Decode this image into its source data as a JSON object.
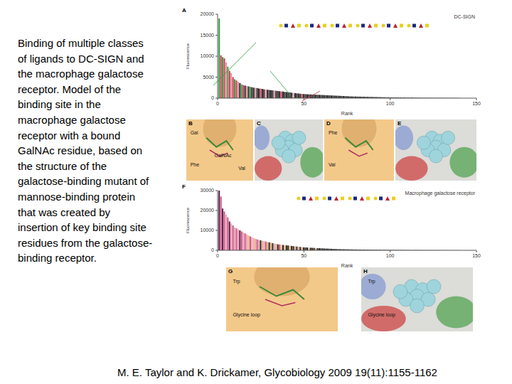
{
  "caption": [
    "Binding of multiple classes",
    "of ligands to DC-SIGN and",
    "the macrophage galactose",
    "receptor. Model of the",
    "binding site in the",
    "macrophage galactose",
    "receptor with a bound",
    "GalNAc residue, based on",
    "the structure of the",
    "galactose-binding mutant of",
    "mannose-binding protein",
    "that was created by",
    "insertion of key binding site",
    "residues from the galactose-",
    "binding receptor."
  ],
  "citation": "M. E. Taylor and K. Drickamer, Glycobiology 2009 19(11):1155-1162",
  "panels": [
    {
      "letter": "B",
      "labels": [
        "Gal",
        "Phe",
        "GalNAc",
        "Val"
      ]
    },
    {
      "letter": "C",
      "labels": []
    },
    {
      "letter": "D",
      "labels": [
        "Phe",
        "Val"
      ]
    },
    {
      "letter": "E",
      "labels": []
    },
    {
      "letter": "G",
      "labels": [
        "Trp",
        "Glycine loop"
      ]
    },
    {
      "letter": "H",
      "labels": [
        "Trp",
        "Glycine loop"
      ]
    }
  ],
  "chart_data": [
    {
      "panel": "A",
      "type": "bar",
      "title": "DC-SIGN",
      "x_label": "Rank",
      "y_label": "Fluorescence",
      "x": [
        1,
        2,
        3,
        4,
        5,
        6,
        7,
        8,
        9,
        10,
        11,
        12,
        13,
        14,
        15,
        16,
        17,
        18,
        19,
        20,
        21,
        22,
        23,
        24,
        25,
        26,
        27,
        28,
        29,
        30,
        31,
        32,
        33,
        34,
        35,
        36,
        37,
        38,
        39,
        40,
        41,
        42,
        43,
        44,
        45,
        46,
        47,
        48,
        49,
        50,
        51,
        52,
        53,
        54,
        55,
        56,
        57,
        58,
        59,
        60,
        61,
        62,
        63,
        64,
        65,
        66,
        67,
        68,
        69,
        70,
        71,
        72,
        73,
        74,
        75,
        76,
        77,
        78,
        79,
        80,
        81,
        82,
        83,
        84,
        85,
        86,
        87,
        88,
        89,
        90,
        91,
        92,
        93,
        94,
        95,
        96,
        97,
        98,
        99,
        100,
        101,
        102,
        103,
        104,
        105,
        106,
        107,
        108,
        109,
        110,
        111,
        112,
        113,
        114,
        115,
        116,
        117,
        118,
        119,
        120,
        121,
        122,
        123,
        124,
        125,
        126,
        127,
        128,
        129,
        130,
        131,
        132,
        133,
        134,
        135,
        136,
        137,
        138,
        139,
        140
      ],
      "values": [
        19000,
        10200,
        9800,
        9500,
        8500,
        7500,
        6500,
        6000,
        5000,
        4500,
        4200,
        3900,
        3600,
        3300,
        3100,
        3000,
        2900,
        2800,
        2700,
        2600,
        2500,
        2450,
        2400,
        2300,
        2250,
        2200,
        2100,
        2050,
        2000,
        1950,
        1900,
        1850,
        1800,
        1750,
        1700,
        1650,
        1600,
        1550,
        1500,
        1450,
        1400,
        1350,
        1300,
        1250,
        1200,
        1150,
        1100,
        1050,
        1000,
        980,
        950,
        920,
        900,
        880,
        860,
        840,
        820,
        800,
        780,
        760,
        740,
        720,
        700,
        680,
        660,
        640,
        620,
        600,
        580,
        560,
        540,
        520,
        500,
        480,
        460,
        440,
        420,
        400,
        390,
        380,
        370,
        360,
        350,
        340,
        330,
        320,
        310,
        300,
        290,
        280,
        270,
        260,
        250,
        240,
        230,
        220,
        210,
        200,
        190,
        180,
        175,
        170,
        165,
        160,
        155,
        150,
        145,
        140,
        135,
        130,
        125,
        120,
        115,
        110,
        105,
        100,
        95,
        90,
        85,
        80,
        78,
        76,
        74,
        72,
        70,
        68,
        66,
        64,
        62,
        60,
        58,
        56,
        54,
        52,
        50,
        48,
        46,
        44,
        42,
        40
      ],
      "colors": [
        "#2e9e3e",
        "#d0304a",
        "#2e9e3e",
        "#d0304a",
        "#e88aa0",
        "#2e9e3e",
        "#d0304a",
        "#e88aa0",
        "#d0304a",
        "#2e9e3e",
        "#d0304a",
        "#e88aa0",
        "#222222",
        "#2e9e3e",
        "#d0304a",
        "#222222",
        "#e88aa0",
        "#222222",
        "#2e9e3e",
        "#222222",
        "#222222",
        "#e88aa0",
        "#222222",
        "#222222",
        "#d0304a",
        "#222222",
        "#222222",
        "#e88aa0",
        "#222222",
        "#222222",
        "#222222",
        "#222222",
        "#e88aa0",
        "#222222",
        "#222222",
        "#222222",
        "#d0304a",
        "#222222",
        "#222222",
        "#222222",
        "#222222",
        "#222222",
        "#222222",
        "#e88aa0",
        "#222222",
        "#222222",
        "#222222",
        "#222222",
        "#d0304a",
        "#222222",
        "#222222",
        "#222222",
        "#222222",
        "#222222",
        "#222222",
        "#222222",
        "#222222",
        "#222222",
        "#222222",
        "#222222",
        "#222222",
        "#222222",
        "#222222",
        "#222222",
        "#222222",
        "#222222",
        "#222222",
        "#222222",
        "#222222",
        "#222222",
        "#222222",
        "#222222",
        "#222222",
        "#222222",
        "#222222",
        "#222222",
        "#222222",
        "#222222",
        "#222222",
        "#222222",
        "#222222",
        "#222222",
        "#222222",
        "#222222",
        "#222222",
        "#222222",
        "#222222",
        "#222222",
        "#222222",
        "#222222",
        "#222222",
        "#222222",
        "#222222",
        "#222222",
        "#222222",
        "#222222",
        "#222222",
        "#222222",
        "#222222",
        "#222222",
        "#222222",
        "#222222",
        "#222222",
        "#222222",
        "#222222",
        "#222222",
        "#222222",
        "#222222",
        "#222222",
        "#222222",
        "#222222",
        "#222222",
        "#222222",
        "#222222",
        "#222222",
        "#222222",
        "#222222",
        "#222222",
        "#222222",
        "#222222",
        "#222222",
        "#222222",
        "#222222",
        "#222222",
        "#222222",
        "#222222",
        "#222222",
        "#222222",
        "#222222",
        "#222222",
        "#222222",
        "#222222",
        "#222222",
        "#222222",
        "#222222",
        "#222222",
        "#222222",
        "#222222",
        "#222222",
        "#222222"
      ],
      "xlim": [
        0,
        150
      ],
      "xticks": [
        0,
        50,
        100,
        150
      ],
      "ylim": [
        0,
        20000
      ],
      "yticks": [
        0,
        5000,
        10000,
        15000,
        20000
      ]
    },
    {
      "panel": "F",
      "type": "bar",
      "title": "Macrophage galactose receptor",
      "x_label": "Rank",
      "y_label": "Fluorescence",
      "x": [
        1,
        2,
        3,
        4,
        5,
        6,
        7,
        8,
        9,
        10,
        11,
        12,
        13,
        14,
        15,
        16,
        17,
        18,
        19,
        20,
        21,
        22,
        23,
        24,
        25,
        26,
        27,
        28,
        29,
        30,
        31,
        32,
        33,
        34,
        35,
        36,
        37,
        38,
        39,
        40,
        41,
        42,
        43,
        44,
        45,
        46,
        47,
        48,
        49,
        50,
        51,
        52,
        53,
        54,
        55,
        56,
        57,
        58,
        59,
        60,
        61,
        62,
        63,
        64,
        65,
        66,
        67,
        68,
        69,
        70,
        71,
        72,
        73,
        74,
        75,
        76,
        77,
        78,
        79,
        80,
        81,
        82,
        83,
        84,
        85,
        86,
        87,
        88,
        89,
        90,
        91,
        92,
        93,
        94,
        95,
        96,
        97,
        98,
        99,
        100,
        101,
        102,
        103,
        104,
        105,
        106,
        107,
        108,
        109,
        110,
        111,
        112,
        113,
        114,
        115,
        116,
        117,
        118,
        119,
        120,
        121,
        122,
        123,
        124,
        125,
        126,
        127,
        128,
        129,
        130,
        131,
        132,
        133,
        134,
        135,
        136,
        137,
        138,
        139,
        140
      ],
      "values": [
        30000,
        27000,
        21000,
        19500,
        18000,
        16500,
        14500,
        13500,
        12500,
        11500,
        11000,
        10500,
        10000,
        9500,
        9000,
        8500,
        8000,
        7500,
        7000,
        6600,
        6200,
        5800,
        5500,
        5200,
        5000,
        4800,
        4600,
        4400,
        4200,
        4000,
        3800,
        3600,
        3400,
        3200,
        3000,
        2900,
        2800,
        2700,
        2600,
        2500,
        2400,
        2300,
        2200,
        2100,
        2000,
        1900,
        1800,
        1700,
        1600,
        1500,
        1450,
        1400,
        1350,
        1300,
        1250,
        1200,
        1150,
        1100,
        1050,
        1000,
        960,
        920,
        880,
        840,
        800,
        760,
        720,
        680,
        640,
        600,
        580,
        560,
        540,
        520,
        500,
        480,
        460,
        440,
        420,
        400,
        390,
        380,
        370,
        360,
        350,
        340,
        330,
        320,
        310,
        300,
        290,
        280,
        270,
        260,
        250,
        240,
        230,
        220,
        210,
        200,
        190,
        185,
        180,
        175,
        170,
        165,
        160,
        155,
        150,
        145,
        140,
        135,
        130,
        125,
        120,
        115,
        110,
        105,
        100,
        95,
        92,
        89,
        86,
        83,
        80,
        77,
        74,
        71,
        68,
        65,
        62,
        59,
        56,
        53,
        50,
        47,
        44,
        41,
        38,
        35
      ],
      "colors": [
        "#5a1a46",
        "#c8507e",
        "#5a1a46",
        "#c8507e",
        "#f0a0b8",
        "#c8507e",
        "#5a1a46",
        "#f0a0b8",
        "#c8507e",
        "#f0a0b8",
        "#c8507e",
        "#f0a0b8",
        "#5a1a46",
        "#c8507e",
        "#f0a0b8",
        "#c8507e",
        "#f0a0b8",
        "#e8b070",
        "#c8507e",
        "#f0a0b8",
        "#f0a0b8",
        "#e8b070",
        "#c8507e",
        "#f0a0b8",
        "#222222",
        "#e8b070",
        "#f0a0b8",
        "#c8507e",
        "#e8b070",
        "#222222",
        "#e8b070",
        "#222222",
        "#f0a0b8",
        "#e8b070",
        "#222222",
        "#c8507e",
        "#e8b070",
        "#222222",
        "#e8b070",
        "#222222",
        "#222222",
        "#e8b070",
        "#222222",
        "#222222",
        "#e8b070",
        "#222222",
        "#f0a0b8",
        "#222222",
        "#e8b070",
        "#222222",
        "#222222",
        "#222222",
        "#e8b070",
        "#222222",
        "#222222",
        "#222222",
        "#e8b070",
        "#222222",
        "#222222",
        "#222222",
        "#222222",
        "#222222",
        "#222222",
        "#222222",
        "#222222",
        "#222222",
        "#222222",
        "#222222",
        "#222222",
        "#222222",
        "#222222",
        "#222222",
        "#222222",
        "#222222",
        "#222222",
        "#222222",
        "#222222",
        "#222222",
        "#222222",
        "#222222",
        "#222222",
        "#222222",
        "#222222",
        "#222222",
        "#222222",
        "#222222",
        "#222222",
        "#222222",
        "#222222",
        "#222222",
        "#222222",
        "#222222",
        "#222222",
        "#222222",
        "#222222",
        "#222222",
        "#222222",
        "#222222",
        "#222222",
        "#222222",
        "#222222",
        "#222222",
        "#222222",
        "#222222",
        "#222222",
        "#222222",
        "#222222",
        "#222222",
        "#222222",
        "#222222",
        "#222222",
        "#222222",
        "#222222",
        "#222222",
        "#222222",
        "#222222",
        "#222222",
        "#222222",
        "#222222",
        "#222222",
        "#222222",
        "#222222",
        "#222222",
        "#222222",
        "#222222",
        "#222222",
        "#222222",
        "#222222",
        "#222222",
        "#222222",
        "#222222",
        "#222222",
        "#222222",
        "#222222",
        "#222222",
        "#222222",
        "#222222",
        "#222222",
        "#222222",
        "#222222"
      ],
      "xlim": [
        0,
        150
      ],
      "xticks": [
        0,
        50,
        100,
        150
      ],
      "ylim": [
        0,
        30000
      ],
      "yticks": [
        0,
        10000,
        20000,
        30000
      ]
    }
  ]
}
